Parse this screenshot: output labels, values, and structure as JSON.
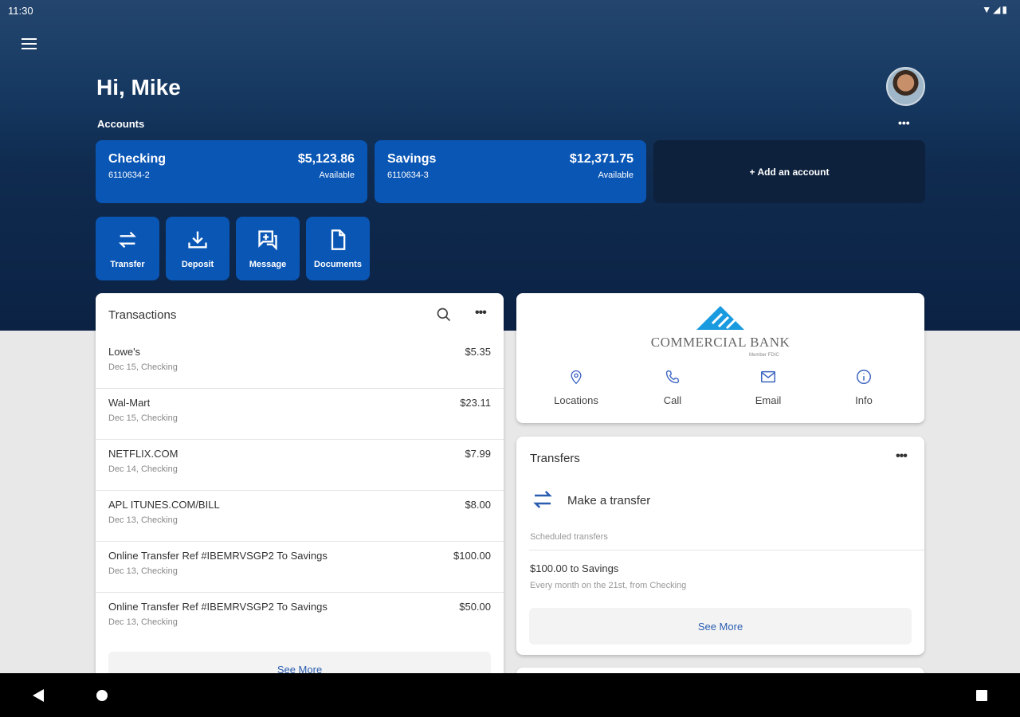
{
  "status": {
    "time": "11:30",
    "icons": "wifi signal battery"
  },
  "header": {
    "greeting": "Hi, Mike",
    "accounts_label": "Accounts",
    "more": "•••"
  },
  "accounts": [
    {
      "name": "Checking",
      "number": "6110634-2",
      "balance": "$5,123.86",
      "balance_label": "Available"
    },
    {
      "name": "Savings",
      "number": "6110634-3",
      "balance": "$12,371.75",
      "balance_label": "Available"
    }
  ],
  "add_account": "+ Add an account",
  "quick_actions": [
    {
      "label": "Transfer",
      "icon": "transfer-icon"
    },
    {
      "label": "Deposit",
      "icon": "download-icon"
    },
    {
      "label": "Message",
      "icon": "message-icon"
    },
    {
      "label": "Documents",
      "icon": "document-icon"
    }
  ],
  "transactions": {
    "title": "Transactions",
    "more": "•••",
    "see_more": "See More",
    "items": [
      {
        "desc": "Lowe's",
        "sub": "Dec 15, Checking",
        "amount": "$5.35"
      },
      {
        "desc": "Wal-Mart",
        "sub": "Dec 15, Checking",
        "amount": "$23.11"
      },
      {
        "desc": "NETFLIX.COM",
        "sub": "Dec 14, Checking",
        "amount": "$7.99"
      },
      {
        "desc": "APL ITUNES.COM/BILL",
        "sub": "Dec 13, Checking",
        "amount": "$8.00"
      },
      {
        "desc": "Online Transfer Ref #IBEMRVSGP2 To Savings",
        "sub": "Dec 13, Checking",
        "amount": "$100.00"
      },
      {
        "desc": "Online Transfer Ref #IBEMRVSGP2 To Savings",
        "sub": "Dec 13, Checking",
        "amount": "$50.00"
      }
    ]
  },
  "bank": {
    "name": "COMMERCIAL BANK",
    "tagline": "Member FDIC",
    "brand_color": "#1a9be0",
    "actions": [
      {
        "label": "Locations"
      },
      {
        "label": "Call"
      },
      {
        "label": "Email"
      },
      {
        "label": "Info"
      }
    ]
  },
  "transfers": {
    "title": "Transfers",
    "more": "•••",
    "make": "Make a transfer",
    "scheduled_label": "Scheduled transfers",
    "scheduled": [
      {
        "title": "$100.00 to Savings",
        "sub": "Every month on the 21st, from Checking"
      }
    ],
    "see_more": "See More"
  },
  "colors": {
    "accent": "#0a56b5",
    "link": "#2a5db0"
  }
}
